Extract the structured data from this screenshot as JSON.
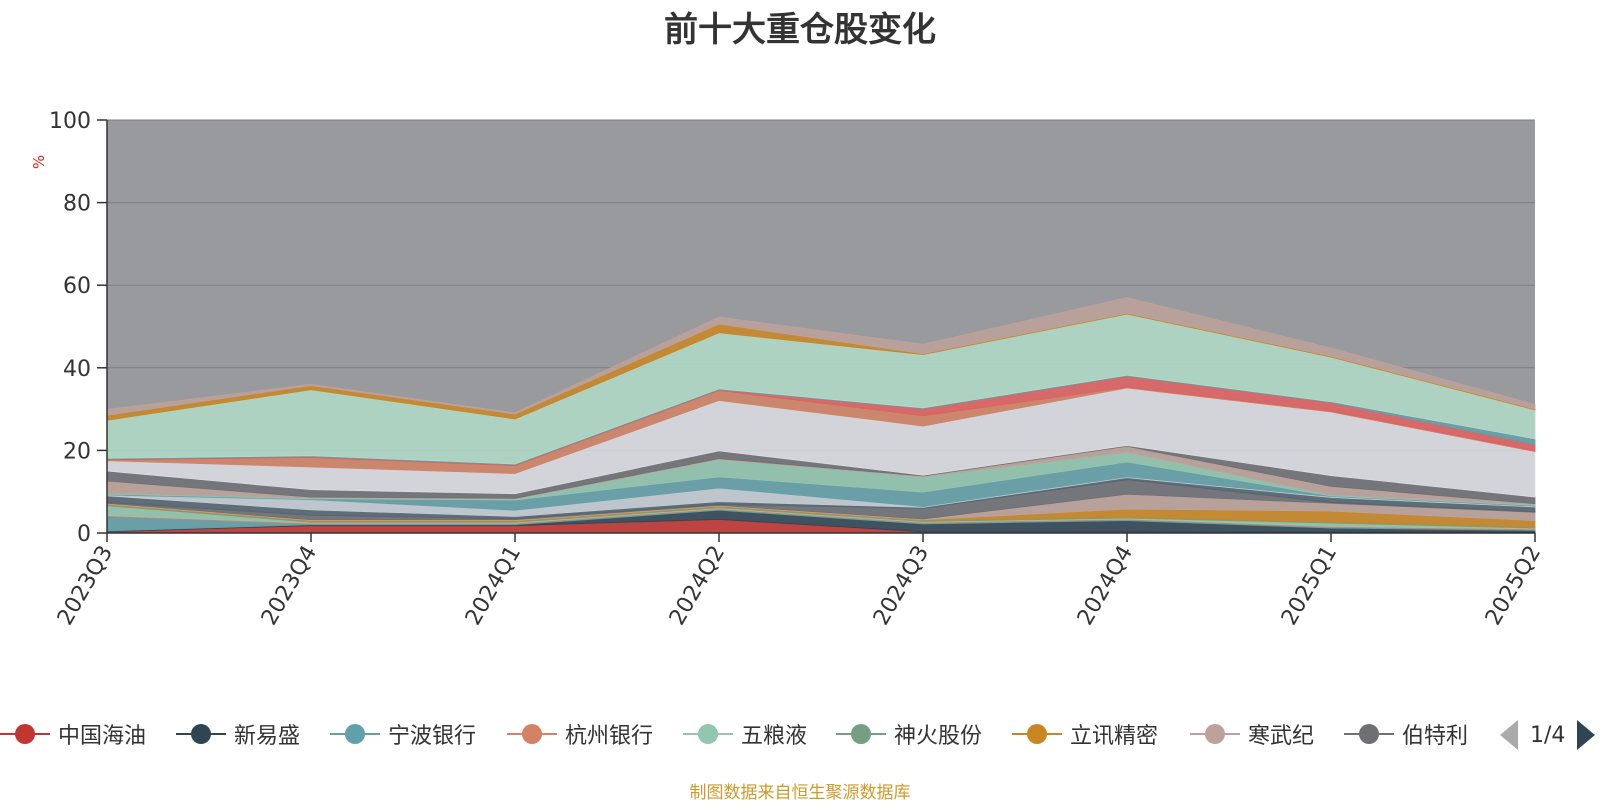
{
  "chart_data": {
    "type": "area",
    "title": "前十大重仓股变化",
    "ylabel": "%",
    "ylim": [
      0,
      100
    ],
    "yticks": [
      0,
      20,
      40,
      60,
      80,
      100
    ],
    "categories": [
      "2023Q3",
      "2023Q4",
      "2024Q1",
      "2024Q2",
      "2024Q3",
      "2024Q4",
      "2025Q1",
      "2025Q2"
    ],
    "stacked": true,
    "grid": true,
    "legend_position": "bottom",
    "background_fill": "#999a9e",
    "series": [
      {
        "name": "中国海油",
        "color": "#c23531",
        "values": [
          0.3,
          1.8,
          1.8,
          3.3,
          0.3,
          0.3,
          0.2,
          0.2
        ]
      },
      {
        "name": "新易盛",
        "color": "#2f4554",
        "values": [
          0.2,
          0.2,
          0.2,
          2.2,
          1.9,
          2.7,
          1.0,
          0.4
        ]
      },
      {
        "name": "宁波银行",
        "color": "#61a0a8",
        "values": [
          3.5,
          0.2,
          0.2,
          0.2,
          0.2,
          0.2,
          0.2,
          0.2
        ]
      },
      {
        "name": "杭州银行",
        "color": "#d48265",
        "values": [
          0.2,
          0.2,
          0.2,
          0.2,
          0.2,
          0.2,
          0.2,
          0.2
        ]
      },
      {
        "name": "五粮液",
        "color": "#91c7ae",
        "values": [
          2.4,
          0.2,
          0.2,
          0.2,
          0.2,
          0.2,
          0.8,
          0.2
        ]
      },
      {
        "name": "神火股份",
        "color": "#749f83",
        "values": [
          0.2,
          0.2,
          0.2,
          0.2,
          0.2,
          0.2,
          0.2,
          0.2
        ]
      },
      {
        "name": "立讯精密",
        "color": "#ca8622",
        "values": [
          0.2,
          0.2,
          0.2,
          0.2,
          0.2,
          2.0,
          2.7,
          1.6
        ]
      },
      {
        "name": "寒武纪",
        "color": "#bda29a",
        "values": [
          0.2,
          0.2,
          0.2,
          0.2,
          0.2,
          3.6,
          1.9,
          2.0
        ]
      },
      {
        "name": "伯特利",
        "color": "#6e7074",
        "values": [
          0.2,
          1.1,
          0.2,
          0.2,
          2.6,
          3.5,
          0.2,
          0.2
        ]
      },
      {
        "name": "",
        "color": "#546570",
        "values": [
          1.6,
          1.3,
          0.6,
          0.7,
          0.2,
          0.5,
          1.2,
          1.1
        ]
      },
      {
        "name": "",
        "color": "#c4ccd3",
        "values": [
          0.2,
          2.5,
          1.5,
          3.3,
          0.2,
          0.2,
          0.2,
          0.2
        ]
      },
      {
        "name": "",
        "color": "#61a0a8",
        "values": [
          0.2,
          0.2,
          2.5,
          2.7,
          3.5,
          3.6,
          0.2,
          0.2
        ]
      },
      {
        "name": "",
        "color": "#91c7ae",
        "values": [
          0.2,
          0.2,
          0.2,
          4.2,
          3.7,
          2.4,
          0.2,
          0.2
        ]
      },
      {
        "name": "",
        "color": "#bda29a",
        "values": [
          3.0,
          0.2,
          0.2,
          0.2,
          0.2,
          1.4,
          2.1,
          0.2
        ]
      },
      {
        "name": "",
        "color": "#6e7074",
        "values": [
          2.4,
          1.8,
          1.1,
          1.9,
          0.2,
          0.2,
          2.6,
          1.6
        ]
      },
      {
        "name": "",
        "color": "#dcdee3",
        "values": [
          2.5,
          5.5,
          4.9,
          12.2,
          11.9,
          13.9,
          15.4,
          11.0
        ]
      },
      {
        "name": "",
        "color": "#d48265",
        "values": [
          0.2,
          2.3,
          1.9,
          2.4,
          2.5,
          0.2,
          0.2,
          0.2
        ]
      },
      {
        "name": "",
        "color": "#e06060",
        "values": [
          0.2,
          0.2,
          0.2,
          0.2,
          1.7,
          2.7,
          2.1,
          1.5
        ]
      },
      {
        "name": "",
        "color": "#61a0a8",
        "values": [
          0.2,
          0.2,
          0.2,
          0.2,
          0.2,
          0.2,
          0.2,
          1.4
        ]
      },
      {
        "name": "",
        "color": "#b2dcc8",
        "values": [
          9.2,
          16.0,
          10.9,
          13.6,
          12.9,
          14.8,
          10.8,
          7.0
        ]
      },
      {
        "name": "",
        "color": "#ca8622",
        "values": [
          1.2,
          1.0,
          1.2,
          2.1,
          0.2,
          0.2,
          0.2,
          0.2
        ]
      },
      {
        "name": "",
        "color": "#bda29a",
        "values": [
          1.4,
          0.3,
          0.3,
          1.7,
          2.3,
          3.8,
          2.0,
          1.1
        ]
      }
    ]
  },
  "legend": {
    "items": [
      {
        "label": "中国海油",
        "color": "#c23531"
      },
      {
        "label": "新易盛",
        "color": "#2f4554"
      },
      {
        "label": "宁波银行",
        "color": "#61a0a8"
      },
      {
        "label": "杭州银行",
        "color": "#d48265"
      },
      {
        "label": "五粮液",
        "color": "#91c7ae"
      },
      {
        "label": "神火股份",
        "color": "#749f83"
      },
      {
        "label": "立讯精密",
        "color": "#ca8622"
      },
      {
        "label": "寒武纪",
        "color": "#bda29a"
      },
      {
        "label": "伯特利",
        "color": "#6e7074"
      }
    ],
    "page_text": "1/4"
  },
  "footer": {
    "source_note": "制图数据来自恒生聚源数据库"
  }
}
